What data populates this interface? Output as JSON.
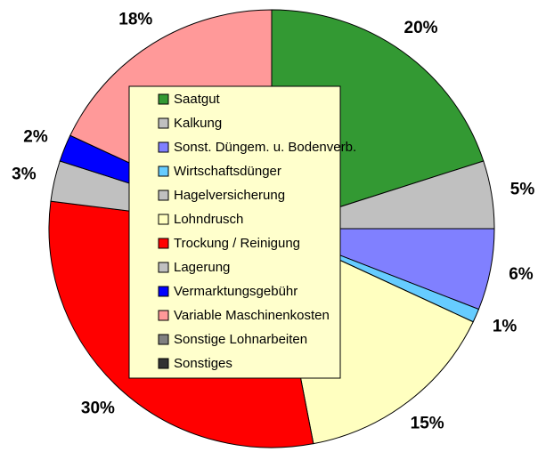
{
  "chart_data": {
    "type": "pie",
    "categories": [
      "Saatgut",
      "Kalkung",
      "Sonst. Düngem. u. Bodenverb.",
      "Wirtschaftsdünger",
      "Hagelversicherung",
      "Lohndrusch",
      "Trockung / Reinigung",
      "Lagerung",
      "Vermarktungsgebühr",
      "Variable Maschinenkosten",
      "Sonstige Lohnarbeiten",
      "Sonstiges"
    ],
    "values": [
      20,
      5,
      6,
      1,
      0,
      15,
      30,
      3,
      2,
      18,
      0,
      0
    ],
    "value_labels": [
      "20%",
      "5%",
      "6%",
      "1%",
      null,
      "15%",
      "30%",
      "3%",
      "2%",
      "18%",
      null,
      null
    ],
    "colors": [
      "#339933",
      "#c0c0c0",
      "#8080ff",
      "#66ccff",
      "#c0c0c0",
      "#ffffc0",
      "#ff0000",
      "#c0c0c0",
      "#0000ff",
      "#ff9999",
      "#808080",
      "#333333"
    ],
    "legend": "center"
  }
}
